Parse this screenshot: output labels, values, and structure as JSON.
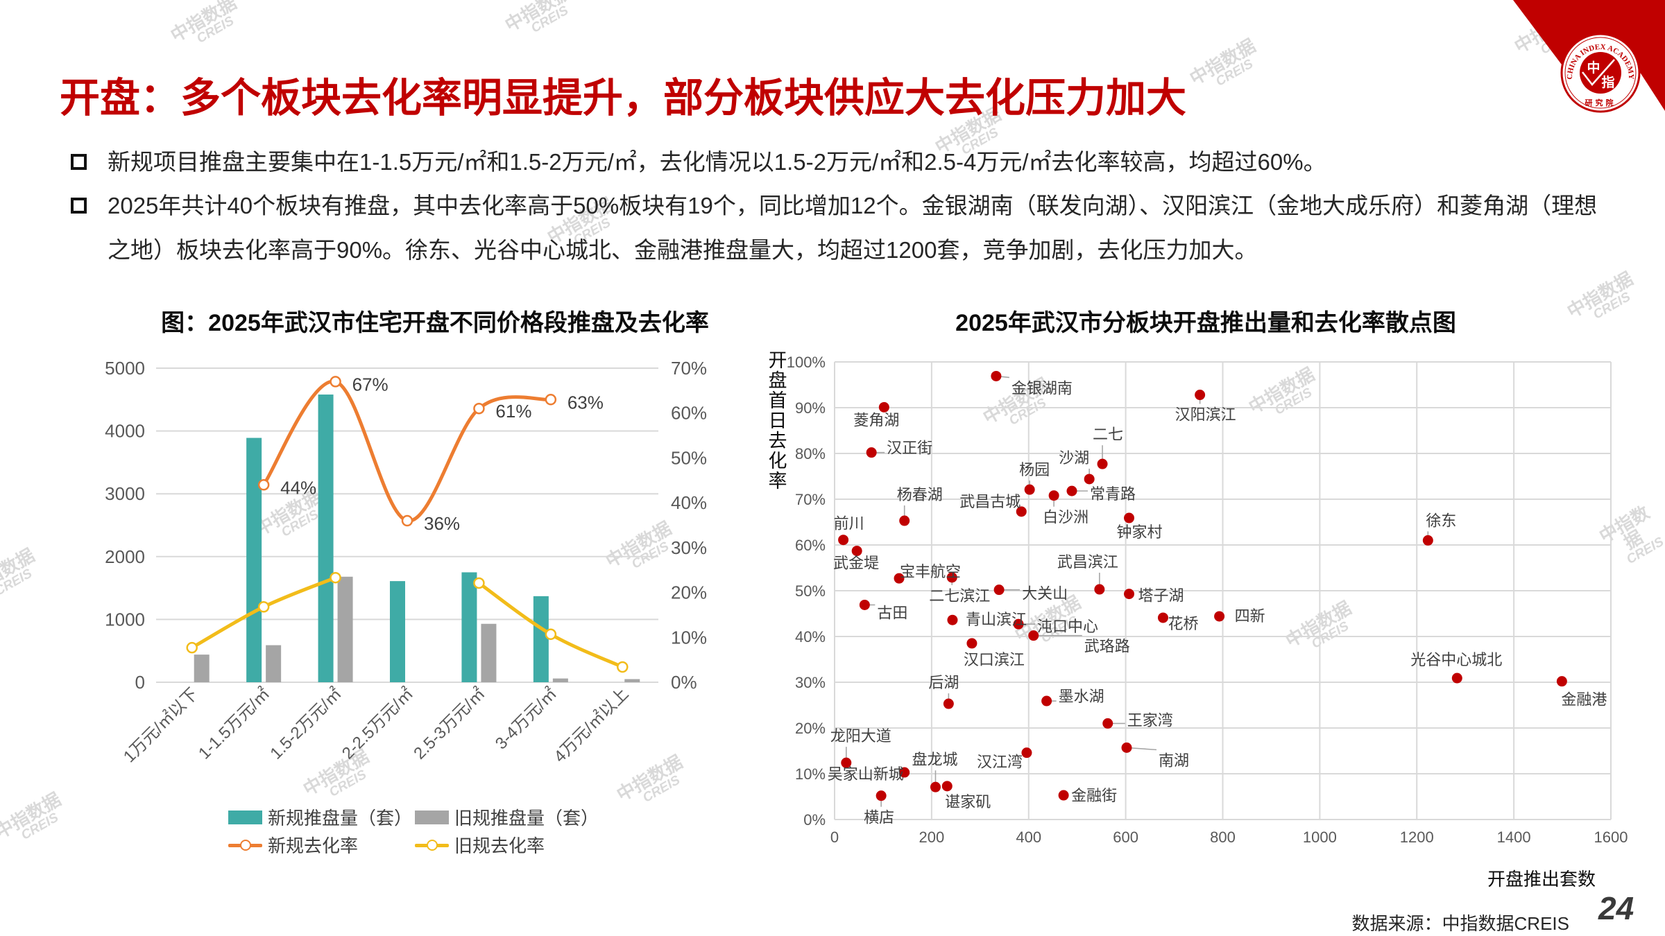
{
  "header": {
    "title": "开盘：多个板块去化率明显提升，部分板块供应大去化压力加大"
  },
  "logo": {
    "ring_text": "CHINA INDEX ACADEMY",
    "char_1": "中",
    "char_2": "指",
    "sub_text": "研究院"
  },
  "bullets": [
    {
      "text": "新规项目推盘主要集中在1-1.5万元/㎡和1.5-2万元/㎡，去化情况以1.5-2万元/㎡和2.5-4万元/㎡去化率较高，均超过60%。"
    },
    {
      "text": "2025年共计40个板块有推盘，其中去化率高于50%板块有19个，同比增加12个。金银湖南（联发向湖）、汉阳滨江（金地大成乐府）和菱角湖（理想之地）板块去化率高于90%。徐东、光谷中心城北、金融港推盘量大，均超过1200套，竞争加剧，去化压力加大。"
    }
  ],
  "colors": {
    "title": "#C00000",
    "new_supply": "#3FABA6",
    "old_supply": "#A5A5A5",
    "new_rate": "#ED7D31",
    "old_rate": "#F2BC1A",
    "scatter_point": "#C00000",
    "grid": "#D9D9D9"
  },
  "chart_data": [
    {
      "type": "bar-line combo",
      "title": "图：2025年武汉市住宅开盘不同价格段推盘及去化率",
      "categories": [
        "1万元/㎡以下",
        "1-1.5万元/㎡",
        "1.5-2万元/㎡",
        "2-2.5万元/㎡",
        "2.5-3万元/㎡",
        "3-4万元/㎡",
        "4万元/㎡以上"
      ],
      "y_left": {
        "range": [
          0,
          5000
        ],
        "ticks": [
          "0",
          "1000",
          "2000",
          "3000",
          "4000",
          "5000"
        ]
      },
      "y_right": {
        "range": [
          0,
          70
        ],
        "ticks": [
          "0%",
          "10%",
          "20%",
          "30%",
          "40%",
          "50%",
          "60%",
          "70%"
        ]
      },
      "grid": true,
      "legend": "bottom",
      "series": [
        {
          "name": "新规推盘量（套）",
          "type": "bar",
          "values": [
            null,
            3890,
            4580,
            1610,
            1750,
            1370,
            null
          ]
        },
        {
          "name": "旧规推盘量（套）",
          "type": "bar",
          "values": [
            440,
            590,
            1680,
            null,
            930,
            60,
            50
          ]
        },
        {
          "name": "新规去化率",
          "type": "line",
          "axis": "right",
          "values": [
            null,
            44,
            67,
            36,
            61,
            63,
            null
          ],
          "labels": [
            null,
            "44%",
            "67%",
            "36%",
            "61%",
            "63%",
            null
          ]
        },
        {
          "name": "旧规去化率",
          "type": "line",
          "axis": "right",
          "values": [
            7.7,
            16.8,
            23.3,
            null,
            22.1,
            10.7,
            3.4
          ]
        }
      ]
    },
    {
      "type": "scatter",
      "title": "2025年武汉市分板块开盘推出量和去化率散点图",
      "xlabel": "开盘推出套数",
      "ylabel": "开盘首日去化率",
      "xlim": [
        0,
        1600
      ],
      "ylim": [
        0,
        100
      ],
      "x_ticks": [
        "0",
        "200",
        "400",
        "600",
        "800",
        "1000",
        "1200",
        "1400",
        "1600"
      ],
      "y_ticks": [
        "0%",
        "10%",
        "20%",
        "30%",
        "40%",
        "50%",
        "60%",
        "70%",
        "80%",
        "90%",
        "100%"
      ],
      "grid": true,
      "points": [
        {
          "name": "金银湖南",
          "x": 333,
          "y": 96.9
        },
        {
          "name": "汉阳滨江",
          "x": 753,
          "y": 92.8
        },
        {
          "name": "菱角湖",
          "x": 102,
          "y": 90.1
        },
        {
          "name": "汉正街",
          "x": 76,
          "y": 80.2
        },
        {
          "name": "二七",
          "x": 552,
          "y": 77.7
        },
        {
          "name": "沙湖",
          "x": 525,
          "y": 74.4
        },
        {
          "name": "杨园",
          "x": 402,
          "y": 72.1
        },
        {
          "name": "常青路",
          "x": 489,
          "y": 71.8
        },
        {
          "name": "白沙洲",
          "x": 452,
          "y": 70.8
        },
        {
          "name": "武昌古城",
          "x": 385,
          "y": 67.3
        },
        {
          "name": "钟家村",
          "x": 607,
          "y": 65.9
        },
        {
          "name": "杨春湖",
          "x": 144,
          "y": 65.3
        },
        {
          "name": "前川",
          "x": 18,
          "y": 61.1
        },
        {
          "name": "徐东",
          "x": 1223,
          "y": 61.0
        },
        {
          "name": "武金堤",
          "x": 46,
          "y": 58.7
        },
        {
          "name": "宝丰航空",
          "x": 133,
          "y": 52.7
        },
        {
          "name": "二七滨江",
          "x": 242,
          "y": 52.9
        },
        {
          "name": "大关山",
          "x": 339,
          "y": 50.2
        },
        {
          "name": "武昌滨江",
          "x": 546,
          "y": 50.3
        },
        {
          "name": "塔子湖",
          "x": 607,
          "y": 49.3
        },
        {
          "name": "古田",
          "x": 62,
          "y": 46.9
        },
        {
          "name": "四新",
          "x": 793,
          "y": 44.4
        },
        {
          "name": "花桥",
          "x": 677,
          "y": 44.1
        },
        {
          "name": "青山滨江",
          "x": 243,
          "y": 43.6
        },
        {
          "name": "沌口中心",
          "x": 379,
          "y": 42.7
        },
        {
          "name": "武珞路",
          "x": 410,
          "y": 40.2
        },
        {
          "name": "汉口滨江",
          "x": 283,
          "y": 38.5
        },
        {
          "name": "光谷中心城北",
          "x": 1283,
          "y": 30.9
        },
        {
          "name": "金融港",
          "x": 1499,
          "y": 30.2
        },
        {
          "name": "后湖",
          "x": 235,
          "y": 25.3
        },
        {
          "name": "墨水湖",
          "x": 437,
          "y": 25.9
        },
        {
          "name": "王家湾",
          "x": 563,
          "y": 21.0
        },
        {
          "name": "南湖",
          "x": 602,
          "y": 15.7
        },
        {
          "name": "汉江湾",
          "x": 396,
          "y": 14.6
        },
        {
          "name": "龙阳大道",
          "x": 24,
          "y": 12.4
        },
        {
          "name": "吴家山新城",
          "x": 144,
          "y": 10.3
        },
        {
          "name": "盘龙城",
          "x": 208,
          "y": 7.1
        },
        {
          "name": "谌家矶",
          "x": 232,
          "y": 7.3
        },
        {
          "name": "横店",
          "x": 96,
          "y": 5.2
        },
        {
          "name": "金融街",
          "x": 472,
          "y": 5.3
        }
      ]
    }
  ],
  "footer": {
    "source": "数据来源：中指数据CREIS",
    "page_number": "24"
  },
  "watermark": {
    "cn": "中指数据",
    "en": "CREIS"
  }
}
